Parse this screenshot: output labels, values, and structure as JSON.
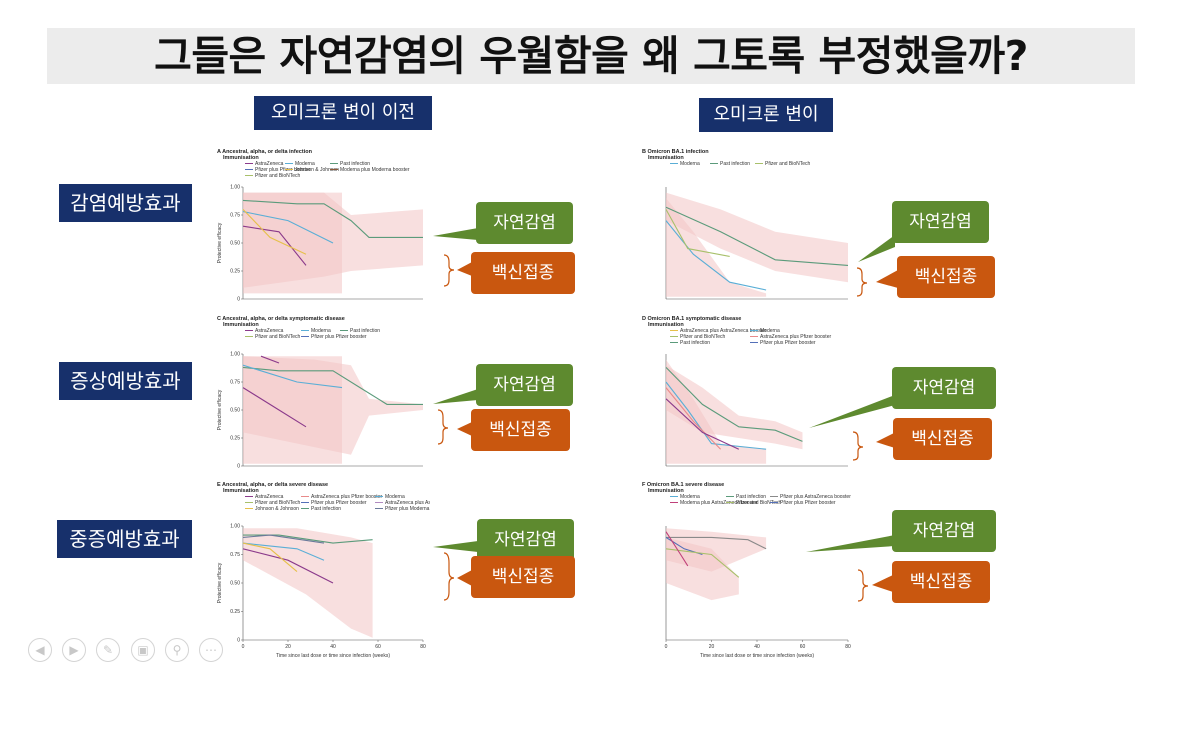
{
  "slide": {
    "title": "그들은 자연감염의 우월함을 왜 그토록 부정했을까?",
    "columns": [
      "오미크론 변이 이전",
      "오미크론 변이"
    ],
    "rows": [
      "감염예방효과",
      "증상예방효과",
      "중증예방효과"
    ],
    "callout_natural": "자연감염",
    "callout_vaccine": "백신접종"
  },
  "panels": [
    {
      "id": "A",
      "title": "Ancestral, alpha, or delta infection",
      "legend_title": "Immunisation",
      "legend": [
        {
          "label": "AstraZeneca",
          "color": "#8b3a8b"
        },
        {
          "label": "Moderna",
          "color": "#5aaed6"
        },
        {
          "label": "Past infection",
          "color": "#5b9b7b"
        },
        {
          "label": "Pfizer plus Pfizer booster",
          "color": "#5470b8"
        },
        {
          "label": "Johnson & Johnson",
          "color": "#e6c04a"
        },
        {
          "label": "Moderna plus Moderna booster",
          "color": "#8b5a3a"
        },
        {
          "label": "Pfizer and BioNTech",
          "color": "#a8c06a"
        }
      ],
      "yaxis_label": "Protective efficacy",
      "yticks": [
        "0",
        "0.25",
        "0.50",
        "0.75",
        "1.00"
      ],
      "xticks": [],
      "xlabel": ""
    },
    {
      "id": "B",
      "title": "Omicron BA.1 infection",
      "legend_title": "Immunisation",
      "legend": [
        {
          "label": "Moderna",
          "color": "#5aaed6"
        },
        {
          "label": "Past infection",
          "color": "#5b9b7b"
        },
        {
          "label": "Pfizer and BioNTech",
          "color": "#a8c06a"
        }
      ],
      "yaxis_label": "",
      "yticks": [],
      "xticks": [],
      "xlabel": ""
    },
    {
      "id": "C",
      "title": "Ancestral, alpha, or delta symptomatic disease",
      "legend_title": "Immunisation",
      "legend": [
        {
          "label": "AstraZeneca",
          "color": "#8b3a8b"
        },
        {
          "label": "Moderna",
          "color": "#5aaed6"
        },
        {
          "label": "Past infection",
          "color": "#5b9b7b"
        },
        {
          "label": "Pfizer and BioNTech",
          "color": "#a8c06a"
        },
        {
          "label": "Pfizer plus Pfizer booster",
          "color": "#5470b8"
        }
      ],
      "yaxis_label": "Protective efficacy",
      "yticks": [
        "0",
        "0.25",
        "0.50",
        "0.75",
        "1.00"
      ],
      "xticks": [],
      "xlabel": ""
    },
    {
      "id": "D",
      "title": "Omicron BA.1 symptomatic disease",
      "legend_title": "Immunisation",
      "legend": [
        {
          "label": "AstraZeneca plus AstraZeneca booster",
          "color": "#e6c04a"
        },
        {
          "label": "Moderna",
          "color": "#5aaed6"
        },
        {
          "label": "Pfizer and BioNTech",
          "color": "#a8c06a"
        },
        {
          "label": "AstraZeneca plus Pfizer booster",
          "color": "#e88a8a"
        },
        {
          "label": "Past infection",
          "color": "#5b9b7b"
        },
        {
          "label": "Pfizer plus Pfizer booster",
          "color": "#5470b8"
        }
      ],
      "yaxis_label": "",
      "yticks": [],
      "xticks": [],
      "xlabel": ""
    },
    {
      "id": "E",
      "title": "Ancestral, alpha, or delta severe disease",
      "legend_title": "Immunisation",
      "legend": [
        {
          "label": "AstraZeneca",
          "color": "#8b3a8b"
        },
        {
          "label": "AstraZeneca plus Pfizer booster",
          "color": "#e88a8a"
        },
        {
          "label": "Moderna",
          "color": "#5aaed6"
        },
        {
          "label": "Pfizer and BioNTech",
          "color": "#a8c06a"
        },
        {
          "label": "Pfizer plus Pfizer booster",
          "color": "#5470b8"
        },
        {
          "label": "AstraZeneca plus AstraZeneca booster",
          "color": "#b08ac0"
        },
        {
          "label": "Johnson & Johnson",
          "color": "#e6c04a"
        },
        {
          "label": "Past infection",
          "color": "#5b9b7b"
        },
        {
          "label": "Pfizer plus Moderna booster",
          "color": "#6a7a9a"
        }
      ],
      "yaxis_label": "Protective efficacy",
      "yticks": [
        "0",
        "0.25",
        "0.50",
        "0.75",
        "1.00"
      ],
      "xticks": [
        "0",
        "20",
        "40",
        "60",
        "80"
      ],
      "xlabel": "Time since last dose or time since infection (weeks)"
    },
    {
      "id": "F",
      "title": "Omicron BA.1 severe disease",
      "legend_title": "Immunisation",
      "legend": [
        {
          "label": "Moderna",
          "color": "#5aaed6"
        },
        {
          "label": "Past infection",
          "color": "#5b9b7b"
        },
        {
          "label": "Pfizer plus AstraZeneca booster",
          "color": "#8a8a8a"
        },
        {
          "label": "Moderna plus AstraZeneca booster",
          "color": "#c0407a"
        },
        {
          "label": "Pfizer and BioNTech",
          "color": "#a8c06a"
        },
        {
          "label": "Pfizer plus Pfizer booster",
          "color": "#5470b8"
        }
      ],
      "yaxis_label": "",
      "yticks": [],
      "xticks": [
        "0",
        "20",
        "40",
        "60",
        "80"
      ],
      "xlabel": "Time since last dose or time since infection (weeks)"
    }
  ],
  "colors": {
    "navy": "#17306b",
    "green": "#5e8a2f",
    "orange": "#c9570f",
    "band": "#f2c4c4",
    "natural_line": "#5b9b7b"
  },
  "nav_icons": [
    "prev-icon",
    "next-icon",
    "pen-icon",
    "slides-icon",
    "zoom-icon",
    "more-icon"
  ],
  "chart_data": []
}
